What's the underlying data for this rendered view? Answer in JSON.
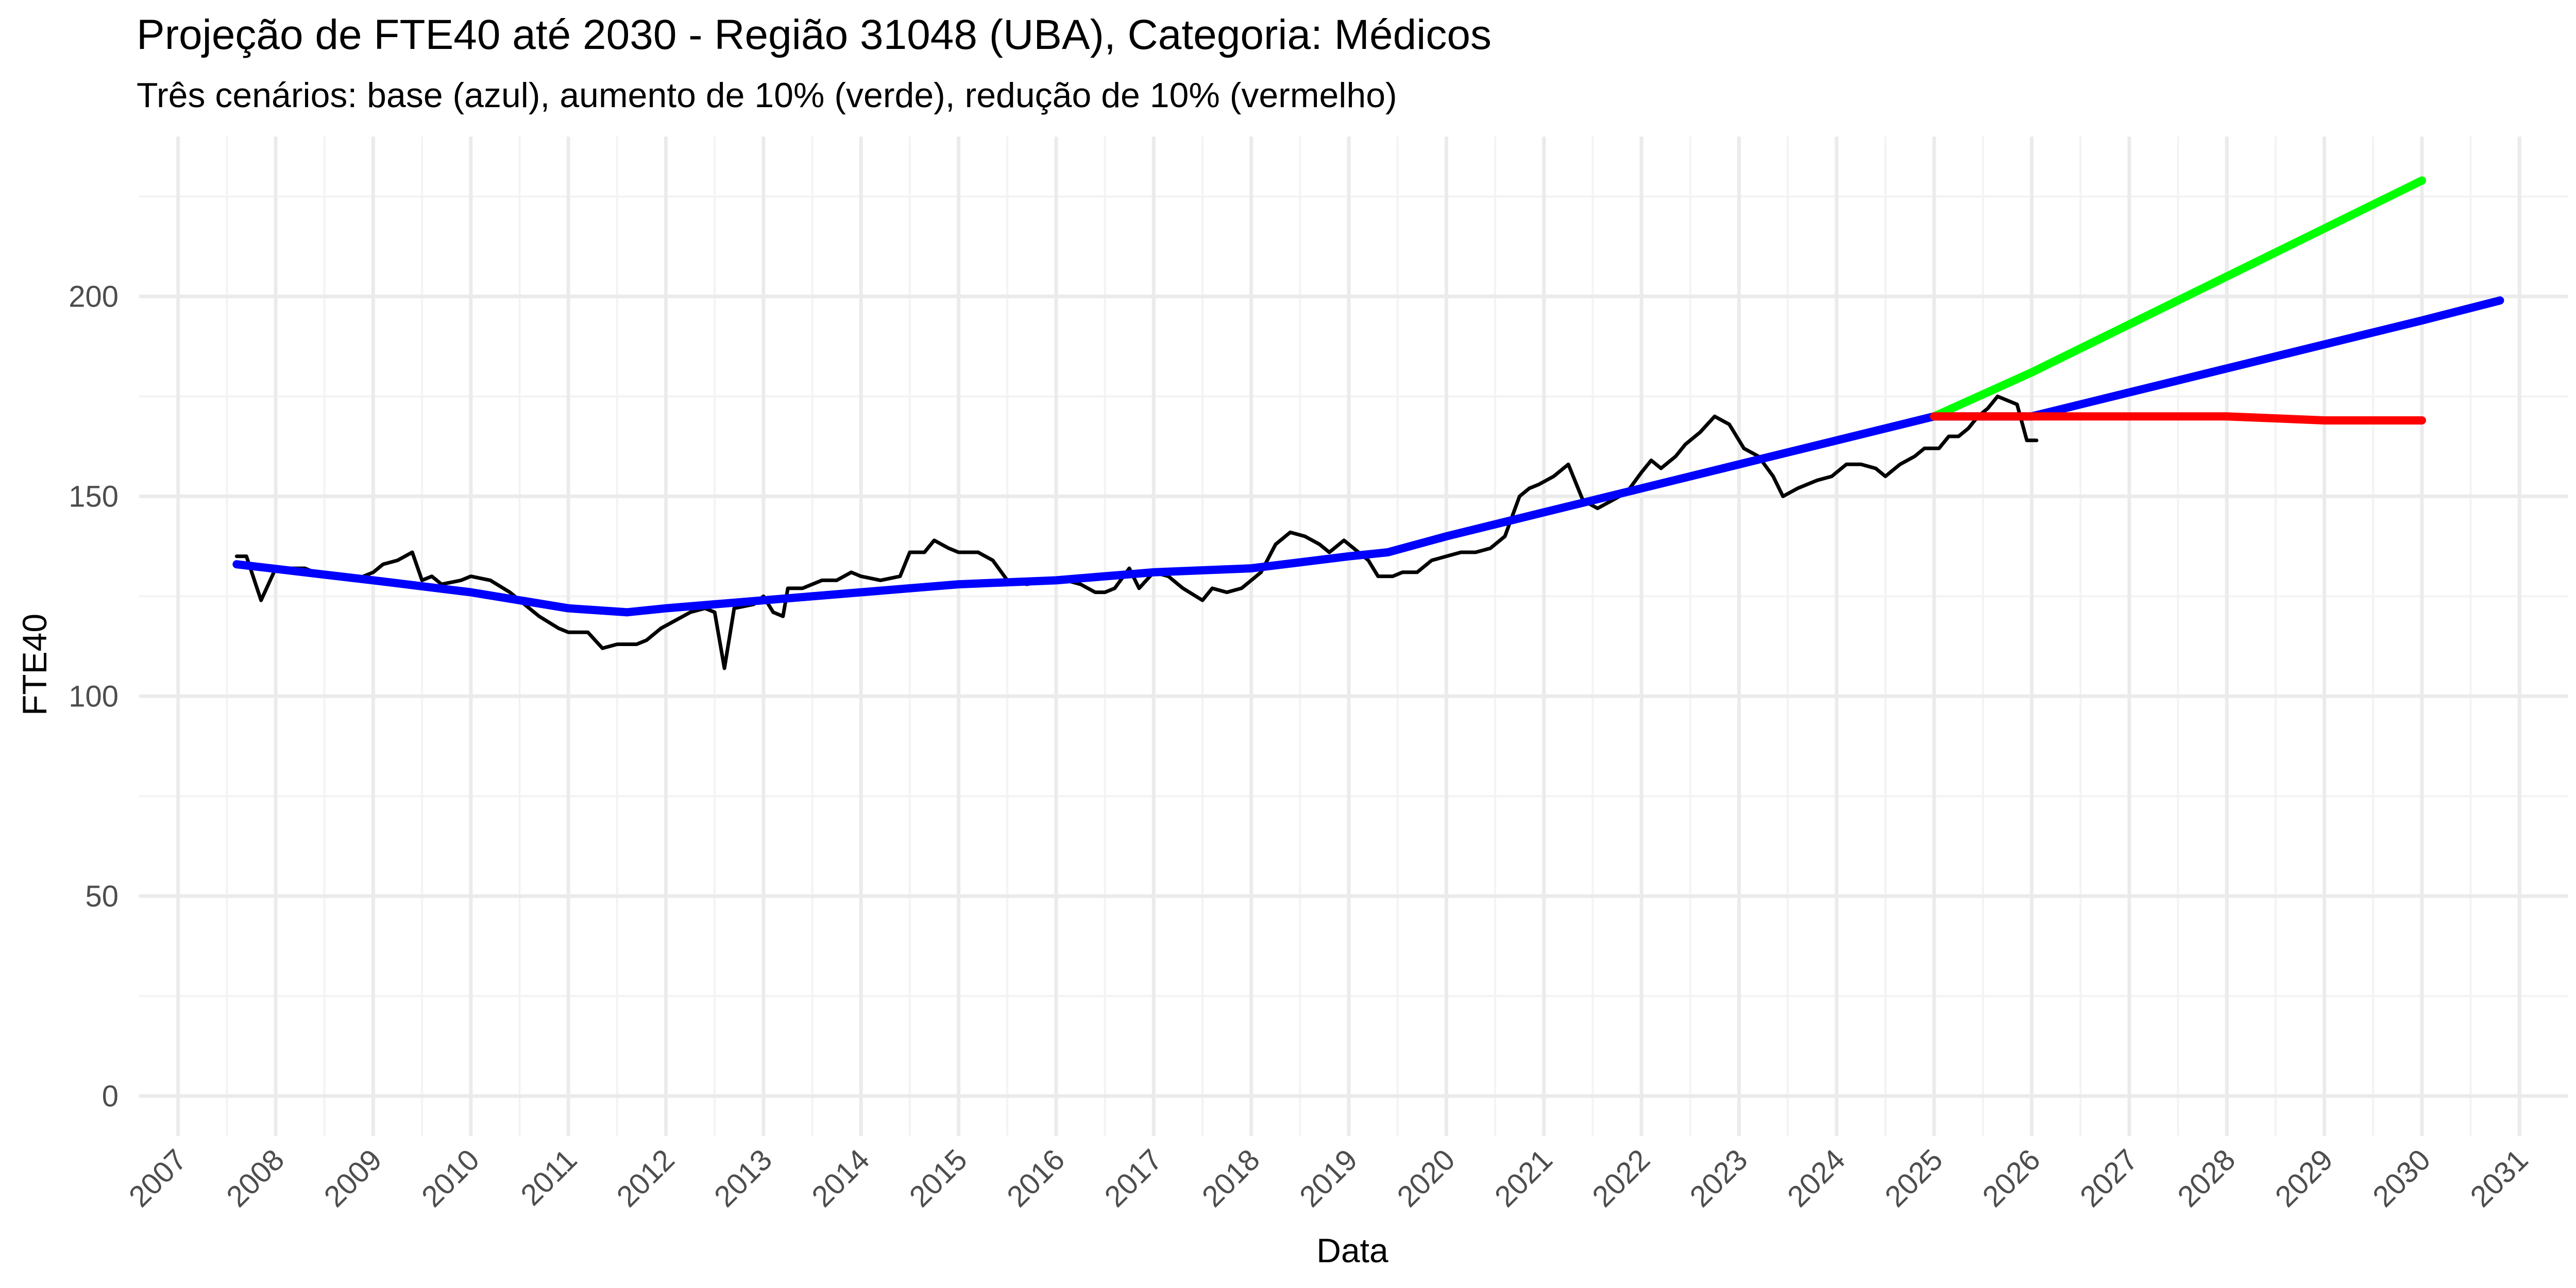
{
  "chart_data": {
    "type": "line",
    "title": "Projeção de FTE40 até 2030 - Região 31048 (UBA), Categoria: Médicos",
    "subtitle": "Três cenários: base (azul), aumento de 10% (verde), redução de 10% (vermelho)",
    "xlabel": "Data",
    "ylabel": "FTE40",
    "xlim": [
      2006.6,
      2031.5
    ],
    "ylim": [
      -10,
      240
    ],
    "x_ticks": [
      2007,
      2008,
      2009,
      2010,
      2011,
      2012,
      2013,
      2014,
      2015,
      2016,
      2017,
      2018,
      2019,
      2020,
      2021,
      2022,
      2023,
      2024,
      2025,
      2026,
      2027,
      2028,
      2029,
      2030,
      2031
    ],
    "x_tick_labels": [
      "2007",
      "2008",
      "2009",
      "2010",
      "2011",
      "2012",
      "2013",
      "2014",
      "2015",
      "2016",
      "2017",
      "2018",
      "2019",
      "2020",
      "2021",
      "2022",
      "2023",
      "2024",
      "2025",
      "2026",
      "2027",
      "2028",
      "2029",
      "2030",
      "2031"
    ],
    "y_ticks": [
      0,
      50,
      100,
      150,
      200
    ],
    "y_tick_labels": [
      "0",
      "50",
      "100",
      "150",
      "200"
    ],
    "grid": true,
    "colors": {
      "observed": "#000000",
      "base": "#0000ff",
      "increase": "#00ff00",
      "decrease": "#ff0000",
      "grid_major": "#ebebeb",
      "grid_minor": "#f3f3f3"
    },
    "series": [
      {
        "color": "#000000",
        "points": [
          [
            2007.6,
            135
          ],
          [
            2007.7,
            135
          ],
          [
            2007.85,
            124
          ],
          [
            2008.0,
            132
          ],
          [
            2008.3,
            132
          ],
          [
            2008.5,
            130
          ],
          [
            2008.8,
            129
          ],
          [
            2009.0,
            131
          ],
          [
            2009.1,
            133
          ],
          [
            2009.25,
            134
          ],
          [
            2009.4,
            136
          ],
          [
            2009.5,
            129
          ],
          [
            2009.6,
            130
          ],
          [
            2009.7,
            128
          ],
          [
            2009.9,
            129
          ],
          [
            2010.0,
            130
          ],
          [
            2010.2,
            129
          ],
          [
            2010.4,
            126
          ],
          [
            2010.6,
            122
          ],
          [
            2010.7,
            120
          ],
          [
            2010.9,
            117
          ],
          [
            2011.0,
            116
          ],
          [
            2011.2,
            116
          ],
          [
            2011.35,
            112
          ],
          [
            2011.5,
            113
          ],
          [
            2011.7,
            113
          ],
          [
            2011.8,
            114
          ],
          [
            2011.95,
            117
          ],
          [
            2012.1,
            119
          ],
          [
            2012.25,
            121
          ],
          [
            2012.4,
            122
          ],
          [
            2012.5,
            121
          ],
          [
            2012.6,
            107
          ],
          [
            2012.7,
            122
          ],
          [
            2012.9,
            123
          ],
          [
            2013.0,
            125
          ],
          [
            2013.1,
            121
          ],
          [
            2013.2,
            120
          ],
          [
            2013.25,
            127
          ],
          [
            2013.4,
            127
          ],
          [
            2013.6,
            129
          ],
          [
            2013.75,
            129
          ],
          [
            2013.9,
            131
          ],
          [
            2014.0,
            130
          ],
          [
            2014.2,
            129
          ],
          [
            2014.4,
            130
          ],
          [
            2014.5,
            136
          ],
          [
            2014.65,
            136
          ],
          [
            2014.75,
            139
          ],
          [
            2014.9,
            137
          ],
          [
            2015.0,
            136
          ],
          [
            2015.2,
            136
          ],
          [
            2015.35,
            134
          ],
          [
            2015.5,
            129
          ],
          [
            2015.7,
            128
          ],
          [
            2015.9,
            129
          ],
          [
            2016.1,
            129
          ],
          [
            2016.25,
            128
          ],
          [
            2016.4,
            126
          ],
          [
            2016.5,
            126
          ],
          [
            2016.6,
            127
          ],
          [
            2016.75,
            132
          ],
          [
            2016.85,
            127
          ],
          [
            2017.0,
            131
          ],
          [
            2017.15,
            130
          ],
          [
            2017.3,
            127
          ],
          [
            2017.5,
            124
          ],
          [
            2017.6,
            127
          ],
          [
            2017.75,
            126
          ],
          [
            2017.9,
            127
          ],
          [
            2018.0,
            129
          ],
          [
            2018.1,
            131
          ],
          [
            2018.25,
            138
          ],
          [
            2018.4,
            141
          ],
          [
            2018.55,
            140
          ],
          [
            2018.7,
            138
          ],
          [
            2018.8,
            136
          ],
          [
            2018.95,
            139
          ],
          [
            2019.1,
            136
          ],
          [
            2019.2,
            134
          ],
          [
            2019.3,
            130
          ],
          [
            2019.45,
            130
          ],
          [
            2019.55,
            131
          ],
          [
            2019.7,
            131
          ],
          [
            2019.85,
            134
          ],
          [
            2020.0,
            135
          ],
          [
            2020.15,
            136
          ],
          [
            2020.3,
            136
          ],
          [
            2020.45,
            137
          ],
          [
            2020.6,
            140
          ],
          [
            2020.75,
            150
          ],
          [
            2020.85,
            152
          ],
          [
            2020.95,
            153
          ],
          [
            2021.1,
            155
          ],
          [
            2021.25,
            158
          ],
          [
            2021.4,
            149
          ],
          [
            2021.55,
            147
          ],
          [
            2021.7,
            149
          ],
          [
            2021.85,
            151
          ],
          [
            2022.0,
            156
          ],
          [
            2022.1,
            159
          ],
          [
            2022.2,
            157
          ],
          [
            2022.35,
            160
          ],
          [
            2022.45,
            163
          ],
          [
            2022.6,
            166
          ],
          [
            2022.75,
            170
          ],
          [
            2022.9,
            168
          ],
          [
            2023.05,
            162
          ],
          [
            2023.2,
            160
          ],
          [
            2023.35,
            155
          ],
          [
            2023.45,
            150
          ],
          [
            2023.6,
            152
          ],
          [
            2023.8,
            154
          ],
          [
            2023.95,
            155
          ],
          [
            2024.1,
            158
          ],
          [
            2024.25,
            158
          ],
          [
            2024.4,
            157
          ],
          [
            2024.5,
            155
          ],
          [
            2024.65,
            158
          ],
          [
            2024.8,
            160
          ],
          [
            2024.9,
            162
          ],
          [
            2025.05,
            162
          ],
          [
            2025.15,
            165
          ],
          [
            2025.25,
            165
          ],
          [
            2025.35,
            167
          ],
          [
            2025.45,
            170
          ],
          [
            2025.55,
            172
          ],
          [
            2025.65,
            175
          ],
          [
            2025.75,
            174
          ],
          [
            2025.85,
            173
          ],
          [
            2025.95,
            164
          ],
          [
            2026.05,
            164
          ]
        ]
      },
      {
        "color": "#0000ff",
        "points": [
          [
            2007.6,
            133
          ],
          [
            2009.0,
            129
          ],
          [
            2010.0,
            126
          ],
          [
            2011.0,
            122
          ],
          [
            2011.6,
            121
          ],
          [
            2012.0,
            122
          ],
          [
            2013.0,
            124
          ],
          [
            2014.0,
            126
          ],
          [
            2015.0,
            128
          ],
          [
            2016.0,
            129
          ],
          [
            2017.0,
            131
          ],
          [
            2018.0,
            132
          ],
          [
            2019.0,
            135
          ],
          [
            2019.4,
            136
          ],
          [
            2020.0,
            140
          ],
          [
            2021.0,
            146
          ],
          [
            2022.0,
            152
          ],
          [
            2023.0,
            158
          ],
          [
            2024.0,
            164
          ],
          [
            2025.0,
            170
          ],
          [
            2026.0,
            170
          ],
          [
            2027.0,
            176
          ],
          [
            2028.0,
            182
          ],
          [
            2029.0,
            188
          ],
          [
            2030.0,
            194
          ],
          [
            2030.8,
            199
          ]
        ]
      },
      {
        "color": "#00ff00",
        "points": [
          [
            2025.0,
            170
          ],
          [
            2026.0,
            181
          ],
          [
            2027.0,
            193
          ],
          [
            2028.0,
            205
          ],
          [
            2029.0,
            217
          ],
          [
            2030.0,
            229
          ]
        ]
      },
      {
        "color": "#ff0000",
        "points": [
          [
            2025.0,
            170
          ],
          [
            2026.0,
            170
          ],
          [
            2027.0,
            170
          ],
          [
            2028.0,
            170
          ],
          [
            2029.0,
            169
          ],
          [
            2030.0,
            169
          ]
        ]
      }
    ]
  }
}
